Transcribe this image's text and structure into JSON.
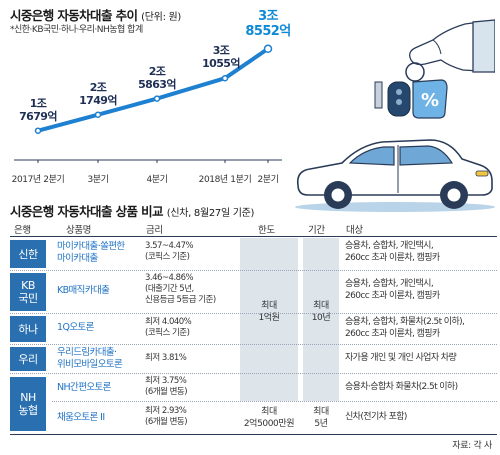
{
  "chart_data": {
    "type": "line",
    "title": "시중은행 자동차대출 추이",
    "unit": "(단위: 원)",
    "note": "*신한·KB국민·하나·우리·NH농협 합계",
    "categories": [
      "2017년 2분기",
      "3분기",
      "4분기",
      "2018년 1분기",
      "2분기"
    ],
    "value_labels": [
      "1조\n7679억",
      "2조\n1749억",
      "2조\n5863억",
      "3조\n1055억",
      "3조\n8552억"
    ],
    "values": [
      17679,
      21749,
      25863,
      31055,
      38552
    ],
    "series_unit": "억원",
    "line_color": "#1e80d0"
  },
  "table": {
    "title": "시중은행 자동차대출 상품 비교",
    "subtitle": "(신차, 8월27일 기준)",
    "headers": {
      "bank": "은행",
      "product": "상품명",
      "rate": "금리",
      "limit": "한도",
      "period": "기간",
      "target": "대상"
    },
    "rows": [
      {
        "bank": "신한",
        "product": "마이카대출·쏠편한\n마이카대출",
        "rate": "3.57~4.47%\n(코픽스 기준)",
        "target": "승용차, 승합차, 개인택시,\n260cc 초과 이륜차, 캠핑카"
      },
      {
        "bank": "KB\n국민",
        "product": "KB매직카대출",
        "rate": "3.46~4.86%\n(대출기간 5년,\n신용등급 5등급 기준)",
        "target": "승용차, 승합차, 개인택시,\n260cc 초과 이륜차, 캠핑카"
      },
      {
        "bank": "하나",
        "product": "1Q오토론",
        "rate": "최저 4.040%\n(코픽스 기준)",
        "target": "승용차, 승합차, 화물차(2.5t 이하),\n260cc 초과 이륜차, 캠핑카"
      },
      {
        "bank": "우리",
        "product": "우리드림카대출·\n위비모바일오토론",
        "rate": "최저 3.81%",
        "target": "자가용 개인 및 개인 사업자 차량"
      },
      {
        "bank": "NH\n농협",
        "product": "NH간편오토론",
        "rate": "최저 3.75%\n(6개월 변동)",
        "target": "승용차·승합차 화물차(2.5t 이하)"
      },
      {
        "bank": "",
        "product": "채움오토론 II",
        "rate": "최저 2.93%\n(6개월 변동)",
        "target": "신차(전기차 포함)"
      }
    ],
    "merged_limit": "최대\n1억원",
    "merged_period": "최대\n10년",
    "last_limit": "최대\n2억5000만원",
    "last_period": "최대\n5년",
    "source": "자료: 각 사",
    "bank_color": "#2a6fb0",
    "product_color": "#1f73c4"
  }
}
